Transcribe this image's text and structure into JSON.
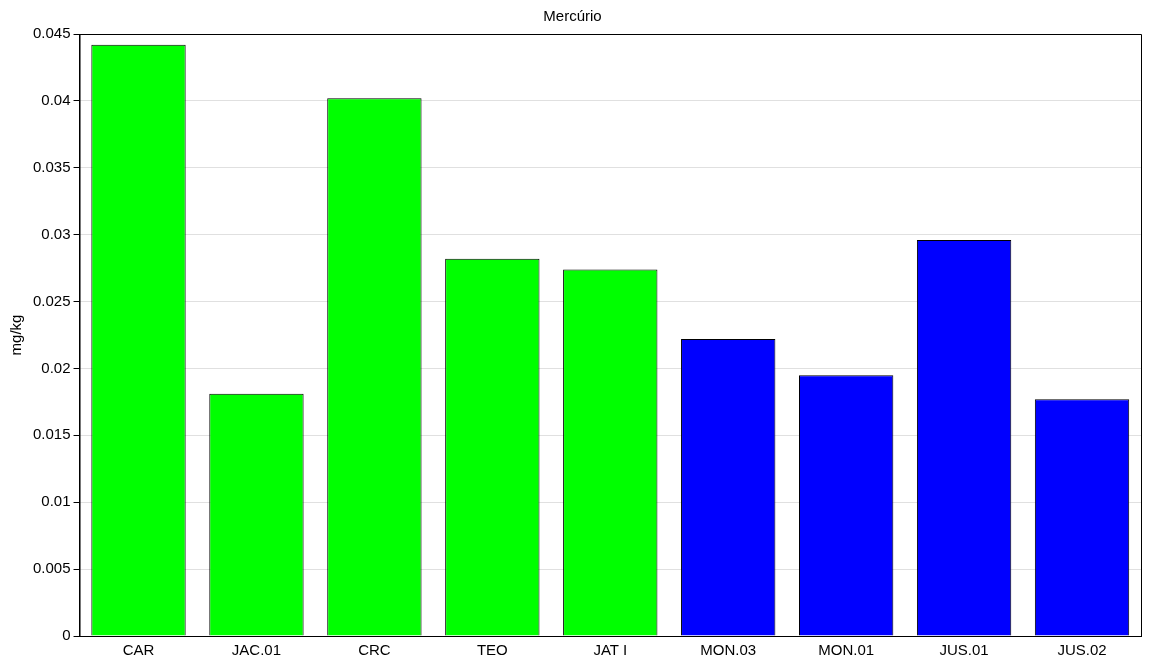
{
  "chart_data": {
    "type": "bar",
    "title": "Mercúrio",
    "ylabel": "mg/kg",
    "categories": [
      "CAR",
      "JAC.01",
      "CRC",
      "TEO",
      "JAT I",
      "MON.03",
      "MON.01",
      "JUS.01",
      "JUS.02"
    ],
    "values": [
      0.0442,
      0.0181,
      0.0402,
      0.0282,
      0.0274,
      0.0222,
      0.0195,
      0.0296,
      0.0177
    ],
    "colors": [
      "#00ff00",
      "#00ff00",
      "#00ff00",
      "#00ff00",
      "#00ff00",
      "#0000ff",
      "#0000ff",
      "#0000ff",
      "#0000ff"
    ],
    "ylim": [
      0,
      0.045
    ],
    "yticks": [
      0,
      0.005,
      0.01,
      0.015,
      0.02,
      0.025,
      0.03,
      0.035,
      0.04,
      0.045
    ],
    "grid": "y",
    "legend": false
  }
}
